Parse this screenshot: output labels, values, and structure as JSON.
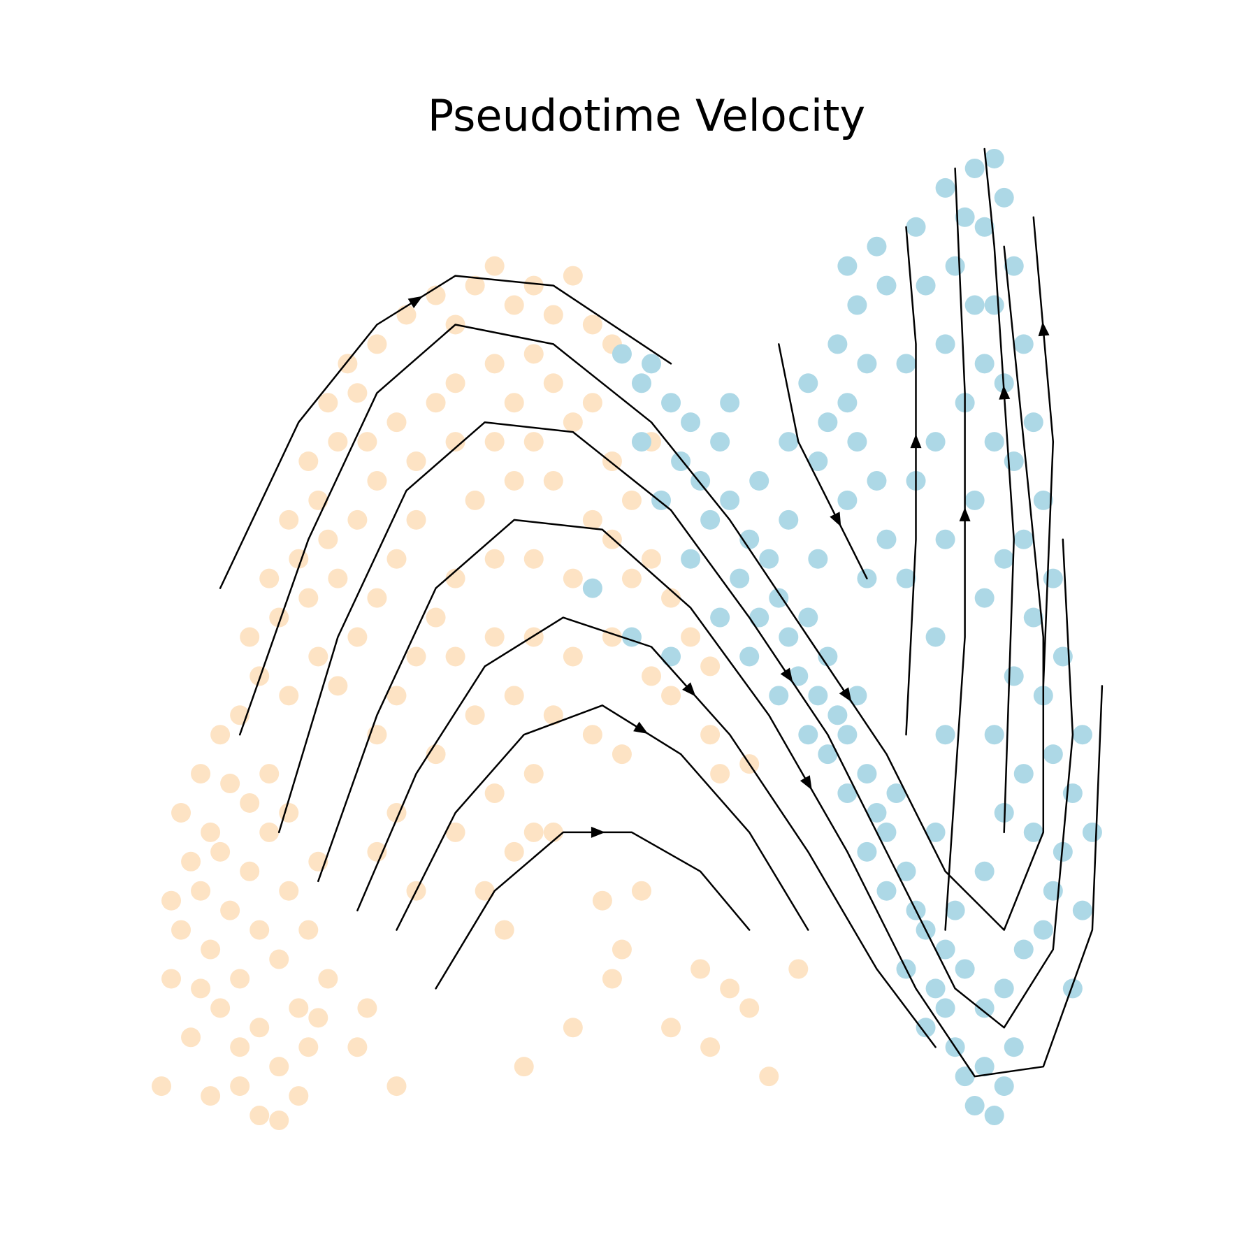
{
  "chart_data": {
    "type": "scatter",
    "title": "Pseudotime Velocity",
    "xlim": [
      0,
      100
    ],
    "ylim": [
      0,
      100
    ],
    "series": [
      {
        "color": "#fde3c4",
        "x": [
          2,
          4,
          5,
          6,
          7,
          8,
          9,
          10,
          11,
          12,
          13,
          14,
          6,
          8,
          10,
          12,
          4,
          3,
          15,
          16,
          9,
          11,
          13,
          7,
          5,
          3,
          1,
          0,
          5,
          10,
          12,
          15,
          17,
          8,
          14,
          16,
          2,
          4,
          6,
          1,
          8,
          10,
          9,
          12,
          11,
          14,
          13,
          16,
          15,
          18,
          17,
          20,
          19,
          22,
          13,
          16,
          15,
          18,
          17,
          20,
          22,
          21,
          24,
          18,
          20,
          22,
          24,
          26,
          25,
          28,
          30,
          32,
          34,
          36,
          38,
          40,
          42,
          38,
          44,
          46,
          30,
          34,
          28,
          36,
          40,
          42,
          26,
          30,
          34,
          38,
          44,
          32,
          36,
          40,
          46,
          48,
          50,
          44,
          50,
          52,
          54,
          48,
          46,
          42,
          38,
          34,
          30,
          28,
          26,
          24,
          22,
          30,
          34,
          38,
          42,
          46,
          50,
          32,
          36,
          40,
          44,
          47,
          52,
          56,
          56,
          60,
          28,
          24,
          22,
          26,
          30,
          34,
          38,
          36,
          40,
          20,
          21,
          24,
          33,
          35,
          38,
          45,
          47,
          49,
          55,
          56,
          58,
          62,
          57,
          65,
          60,
          37,
          42,
          46,
          52
        ],
        "values": [
          20,
          24,
          18,
          28,
          22,
          15,
          26,
          20,
          30,
          17,
          24,
          12,
          12,
          8,
          10,
          6,
          14,
          9,
          20,
          27,
          33,
          36,
          32,
          35,
          30,
          27,
          15,
          4,
          3,
          1,
          0.5,
          8,
          15,
          4,
          3,
          11,
          32,
          36,
          40,
          23,
          42,
          46,
          50,
          52,
          56,
          58,
          62,
          64,
          68,
          70,
          74,
          75,
          78,
          80,
          44,
          48,
          54,
          56,
          60,
          62,
          66,
          70,
          72,
          45,
          50,
          54,
          58,
          62,
          83,
          85,
          82,
          86,
          88,
          84,
          86,
          83,
          87,
          79,
          82,
          80,
          76,
          78,
          74,
          74,
          76,
          72,
          68,
          70,
          70,
          70,
          74,
          64,
          66,
          66,
          68,
          64,
          70,
          62,
          58,
          54,
          50,
          56,
          60,
          56,
          58,
          58,
          56,
          52,
          48,
          44,
          40,
          48,
          50,
          50,
          48,
          50,
          46,
          42,
          44,
          42,
          40,
          38,
          44,
          47,
          40,
          37,
          38,
          32,
          28,
          24,
          30,
          34,
          36,
          28,
          30,
          8,
          12,
          4,
          24,
          20,
          30,
          23,
          18,
          24,
          16,
          8,
          14,
          5,
          36,
          16,
          12,
          6,
          10,
          15,
          10
        ]
      },
      {
        "color": "#add8e6",
        "x": [
          47,
          49,
          50,
          52,
          54,
          53,
          55,
          57,
          58,
          56,
          60,
          59,
          62,
          61,
          63,
          64,
          66,
          65,
          67,
          68,
          69,
          70,
          71,
          72,
          70,
          73,
          74,
          75,
          76,
          74,
          77,
          78,
          76,
          79,
          80,
          78,
          81,
          82,
          83,
          84,
          85,
          86,
          87,
          80,
          82,
          84,
          72,
          68,
          66,
          63,
          60,
          57,
          54,
          51,
          49,
          58,
          61,
          64,
          67,
          44,
          48,
          52,
          86,
          88,
          90,
          91,
          92,
          89,
          93,
          91,
          90,
          92,
          89,
          91,
          88,
          90,
          87,
          89,
          86,
          88,
          85,
          87,
          84,
          86,
          83,
          85,
          80,
          82,
          81,
          83,
          84,
          82,
          85,
          83,
          86,
          84,
          87,
          85,
          88,
          86,
          84,
          81,
          79,
          80,
          79,
          80,
          79,
          80,
          78,
          77,
          76,
          77,
          76,
          94,
          95,
          94,
          93,
          70,
          71,
          69,
          72,
          70,
          68,
          71,
          73,
          70,
          67,
          74,
          72,
          66,
          64,
          74,
          73
        ],
        "values": [
          79,
          76,
          78,
          74,
          72,
          68,
          66,
          70,
          64,
          62,
          60,
          56,
          58,
          52,
          54,
          50,
          52,
          46,
          44,
          48,
          42,
          40,
          44,
          36,
          34,
          32,
          30,
          34,
          26,
          24,
          22,
          20,
          16,
          14,
          12,
          10,
          8,
          5,
          2,
          6,
          1,
          4,
          8,
          18,
          16,
          12,
          28,
          38,
          40,
          44,
          48,
          52,
          58,
          64,
          70,
          74,
          66,
          62,
          58,
          55,
          50,
          48,
          14,
          18,
          20,
          24,
          28,
          30,
          34,
          38,
          44,
          48,
          52,
          56,
          60,
          64,
          68,
          72,
          76,
          80,
          84,
          88,
          92,
          95,
          98,
          99,
          96,
          93,
          88,
          84,
          78,
          74,
          70,
          64,
          58,
          54,
          46,
          40,
          36,
          32,
          26,
          22,
          30,
          40,
          50,
          60,
          70,
          80,
          86,
          92,
          78,
          66,
          56,
          40,
          30,
          22,
          14,
          88,
          84,
          80,
          78,
          74,
          72,
          70,
          66,
          64,
          68,
          60,
          56,
          76,
          70,
          86,
          90
        ]
      }
    ],
    "streamlines": [
      {
        "x": [
          6,
          14,
          22,
          30,
          40,
          52
        ],
        "y": [
          55,
          72,
          82,
          87,
          86,
          78
        ]
      },
      {
        "x": [
          8,
          15,
          22,
          30,
          40,
          50,
          58,
          66,
          74,
          80,
          86,
          90,
          90,
          88,
          86
        ],
        "y": [
          40,
          60,
          75,
          82,
          80,
          72,
          62,
          50,
          38,
          26,
          20,
          30,
          50,
          70,
          90
        ]
      },
      {
        "x": [
          12,
          18,
          25,
          33,
          42,
          52,
          60,
          68,
          75,
          81,
          86,
          91,
          93,
          92
        ],
        "y": [
          30,
          50,
          65,
          72,
          71,
          63,
          52,
          40,
          26,
          14,
          10,
          18,
          40,
          60
        ]
      },
      {
        "x": [
          16,
          22,
          28,
          36,
          45,
          54,
          62,
          70,
          77,
          83,
          90,
          95,
          96
        ],
        "y": [
          25,
          42,
          55,
          62,
          61,
          53,
          42,
          28,
          14,
          5,
          6,
          20,
          45
        ]
      },
      {
        "x": [
          20,
          26,
          33,
          41,
          50,
          58,
          66,
          73,
          79
        ],
        "y": [
          22,
          36,
          47,
          52,
          49,
          40,
          28,
          16,
          8
        ]
      },
      {
        "x": [
          24,
          30,
          37,
          45,
          53,
          60,
          66
        ],
        "y": [
          20,
          32,
          40,
          43,
          38,
          30,
          20
        ]
      },
      {
        "x": [
          28,
          34,
          41,
          48,
          55,
          60
        ],
        "y": [
          14,
          24,
          30,
          30,
          26,
          20
        ]
      },
      {
        "x": [
          63,
          65,
          68,
          70,
          72
        ],
        "y": [
          80,
          70,
          64,
          60,
          56
        ]
      },
      {
        "x": [
          76,
          77,
          77,
          76
        ],
        "y": [
          40,
          60,
          80,
          92
        ]
      },
      {
        "x": [
          80,
          82,
          82,
          81
        ],
        "y": [
          20,
          50,
          75,
          98
        ]
      },
      {
        "x": [
          86,
          87,
          85,
          84
        ],
        "y": [
          30,
          60,
          90,
          100
        ]
      },
      {
        "x": [
          90,
          91,
          89
        ],
        "y": [
          45,
          70,
          93
        ]
      }
    ],
    "streamline_color": "#000000"
  }
}
